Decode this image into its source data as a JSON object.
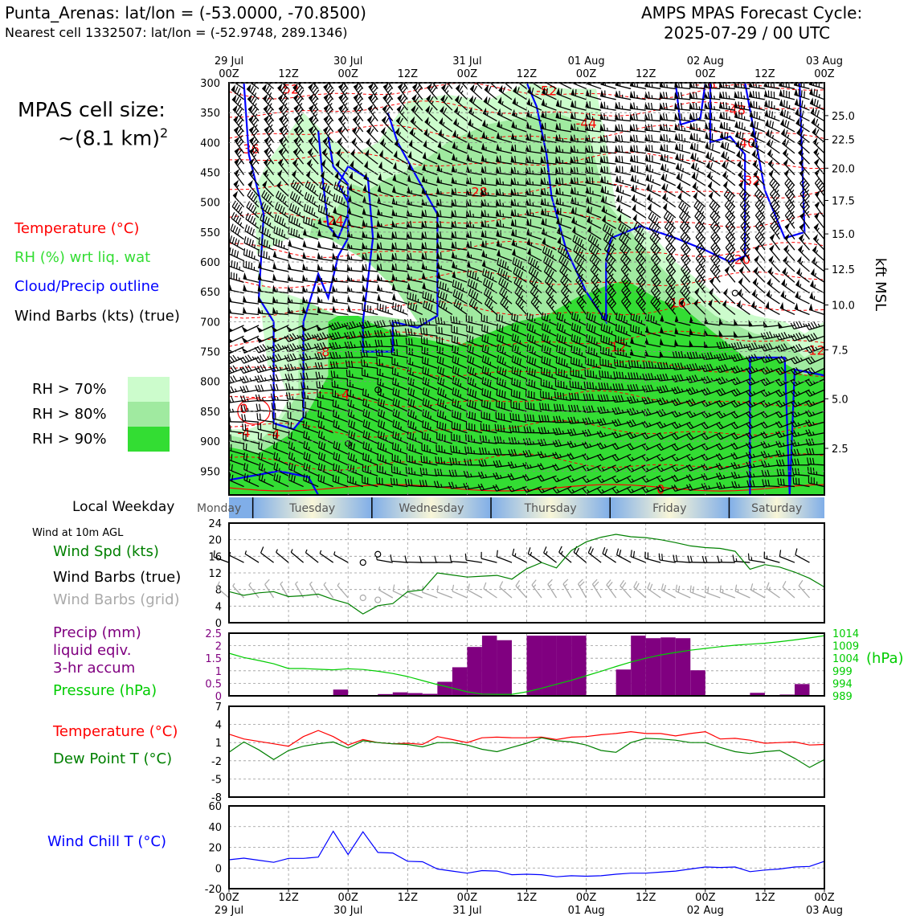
{
  "header": {
    "location": "Punta_Arenas: lat/lon = (-53.0000, -70.8500)",
    "nearest_cell": "Nearest cell 1332507: lat/lon = (-52.9748, 289.1346)",
    "forecast_title": "AMPS MPAS Forecast Cycle:",
    "forecast_cycle": "2025-07-29 / 00 UTC"
  },
  "cell_size": {
    "line1": "MPAS cell size:",
    "line2": "~(8.1 km)",
    "sup": "2"
  },
  "legend": {
    "temperature": "Temperature (°C)",
    "rh": "RH (%) wrt liq. wat",
    "cloud": "Cloud/Precip outline",
    "wind": "Wind Barbs (kts) (true)",
    "rh70": "RH > 70%",
    "rh80": "RH > 80%",
    "rh90": "RH > 90%"
  },
  "colors": {
    "rh70": "#ccfccc",
    "rh80": "#a0eaa0",
    "rh90": "#33dd33",
    "temperature": "#ff0000",
    "cloud": "#0000ff",
    "windspd": "#008000",
    "precip": "#800080",
    "pressure": "#00cc00",
    "windchill": "#0000ff",
    "barb_grid": "#aaaaaa"
  },
  "time_axis": {
    "top_labels": [
      {
        "day": "29 Jul",
        "hour": "00Z"
      },
      {
        "day": "",
        "hour": "12Z"
      },
      {
        "day": "30 Jul",
        "hour": "00Z"
      },
      {
        "day": "",
        "hour": "12Z"
      },
      {
        "day": "31 Jul",
        "hour": "00Z"
      },
      {
        "day": "",
        "hour": "12Z"
      },
      {
        "day": "01 Aug",
        "hour": "00Z"
      },
      {
        "day": "",
        "hour": "12Z"
      },
      {
        "day": "02 Aug",
        "hour": "00Z"
      },
      {
        "day": "",
        "hour": "12Z"
      },
      {
        "day": "03 Aug",
        "hour": "00Z"
      }
    ]
  },
  "weekdays": {
    "label": "Local Weekday",
    "names": [
      "Monday",
      "Tuesday",
      "Wednesday",
      "Thursday",
      "Friday",
      "Saturday"
    ]
  },
  "wind_panel": {
    "title": "Wind at 10m AGL",
    "spd_label": "Wind Spd (kts)",
    "barbs_true": "Wind Barbs (true)",
    "barbs_grid": "Wind Barbs (grid)"
  },
  "precip_panel": {
    "label1": "Precip (mm)",
    "label2": "liquid eqiv.",
    "label3": "3-hr accum",
    "pressure_label": "Pressure (hPa)",
    "hpa_unit": "(hPa)"
  },
  "temp_panel": {
    "temp_label": "Temperature (°C)",
    "dew_label": "Dew Point T (°C)"
  },
  "chill_panel": {
    "label": "Wind Chill T (°C)"
  },
  "chart_data": [
    {
      "type": "heatmap",
      "title": "",
      "ylabel": "",
      "y2label": "kft MSL",
      "y_ticks": [
        300,
        350,
        400,
        450,
        500,
        550,
        600,
        650,
        700,
        750,
        800,
        850,
        900,
        950
      ],
      "ylim": [
        990,
        300
      ],
      "kft_ticks": [
        {
          "p": 355,
          "label": "25.0"
        },
        {
          "p": 395,
          "label": "22.5"
        },
        {
          "p": 443,
          "label": "20.0"
        },
        {
          "p": 497,
          "label": "17.5"
        },
        {
          "p": 553,
          "label": "15.0"
        },
        {
          "p": 612,
          "label": "12.5"
        },
        {
          "p": 672,
          "label": "10.0"
        },
        {
          "p": 747,
          "label": "7.5"
        },
        {
          "p": 829,
          "label": "5.0"
        },
        {
          "p": 912,
          "label": "2.5"
        }
      ],
      "xlim_hours": [
        0,
        120
      ],
      "temperature_labels": [
        {
          "t": 12,
          "p": 310,
          "v": "-52"
        },
        {
          "t": 64,
          "p": 313,
          "v": "-52"
        },
        {
          "t": 96,
          "p": 302,
          "v": "-56"
        },
        {
          "t": 102,
          "p": 345,
          "v": "-48"
        },
        {
          "t": 72,
          "p": 367,
          "v": "-44"
        },
        {
          "t": 104,
          "p": 400,
          "v": "-40"
        },
        {
          "t": 4,
          "p": 410,
          "v": "-36"
        },
        {
          "t": 105,
          "p": 463,
          "v": "-32"
        },
        {
          "t": 50,
          "p": 482,
          "v": "-28"
        },
        {
          "t": 21,
          "p": 530,
          "v": "-24"
        },
        {
          "t": 103,
          "p": 595,
          "v": "-20"
        },
        {
          "t": 90,
          "p": 668,
          "v": "-16"
        },
        {
          "t": 78,
          "p": 742,
          "v": "-12"
        },
        {
          "t": 118,
          "p": 747,
          "v": "-12"
        },
        {
          "t": 19,
          "p": 750,
          "v": "-8"
        },
        {
          "t": 23,
          "p": 822,
          "v": "-4"
        },
        {
          "t": 3,
          "p": 885,
          "v": "-4"
        },
        {
          "t": 9,
          "p": 887,
          "v": "-4"
        },
        {
          "t": 3,
          "p": 845,
          "v": "0"
        },
        {
          "t": 87,
          "p": 980,
          "v": "0"
        }
      ]
    },
    {
      "type": "line",
      "title": "",
      "ylabel": "Wind Spd (kts)",
      "ylim": [
        0,
        24
      ],
      "y_ticks": [
        0,
        4,
        8,
        12,
        16,
        20,
        24
      ],
      "series": [
        {
          "name": "Wind Spd (kts)",
          "x": [
            0,
            3,
            6,
            9,
            12,
            15,
            18,
            21,
            24,
            27,
            30,
            33,
            36,
            39,
            42,
            45,
            48,
            51,
            54,
            57,
            60,
            63,
            66,
            69,
            72,
            75,
            78,
            81,
            84,
            87,
            90,
            93,
            96,
            99,
            102,
            105,
            108,
            111,
            114,
            117,
            120
          ],
          "values": [
            7.5,
            6.6,
            7.2,
            7.5,
            6.3,
            6.5,
            6.9,
            5.6,
            4.6,
            2.1,
            4.1,
            4.6,
            7.5,
            7.9,
            12.0,
            11.5,
            11.0,
            11.2,
            11.4,
            10.5,
            13.0,
            14.5,
            13.2,
            17.4,
            19.5,
            20.6,
            21.3,
            20.7,
            20.5,
            20.0,
            19.3,
            18.5,
            18.1,
            17.9,
            17.2,
            12.9,
            14.0,
            13.4,
            12.2,
            10.7,
            8.6
          ]
        }
      ]
    },
    {
      "type": "bar",
      "title": "",
      "ylabel": "Precip (mm)",
      "ylim": [
        0,
        2.5
      ],
      "y_ticks": [
        0,
        0.5,
        1.0,
        1.5,
        2.0,
        2.5
      ],
      "x": [
        21,
        24,
        27,
        30,
        33,
        36,
        39,
        42,
        45,
        48,
        51,
        54,
        57,
        60,
        63,
        66,
        69,
        72,
        75,
        78,
        81,
        84,
        87,
        90,
        93,
        96,
        99,
        102,
        105,
        108,
        111,
        114,
        117
      ],
      "values": [
        0,
        0.25,
        0,
        0,
        0.07,
        0.14,
        0.11,
        0.08,
        0.56,
        1.14,
        1.95,
        2.4,
        2.22,
        0,
        2.4,
        2.4,
        2.4,
        2.4,
        0,
        0,
        1.05,
        2.4,
        2.3,
        2.33,
        2.3,
        1.02,
        0,
        0,
        0,
        0.12,
        0.01,
        0.05,
        0.47
      ],
      "pressure": {
        "name": "Pressure (hPa)",
        "ylim": [
          989,
          1014
        ],
        "ticks": [
          989,
          994,
          999,
          1004,
          1009,
          1014
        ],
        "x": [
          0,
          3,
          6,
          9,
          12,
          15,
          18,
          21,
          24,
          27,
          30,
          33,
          36,
          39,
          42,
          45,
          48,
          51,
          54,
          57,
          60,
          63,
          66,
          69,
          72,
          75,
          78,
          81,
          84,
          87,
          90,
          93,
          96,
          99,
          102,
          105,
          108,
          111,
          114,
          117,
          120
        ],
        "values": [
          1006.0,
          1004.3,
          1003.1,
          1001.8,
          999.9,
          999.9,
          999.6,
          999.4,
          999.8,
          999.5,
          998.8,
          997.9,
          996.7,
          995.1,
          993.5,
          992.1,
          990.6,
          989.7,
          989.6,
          989.6,
          990.6,
          992.0,
          993.6,
          995.2,
          997.0,
          998.8,
          1000.7,
          1002.5,
          1004.0,
          1005.3,
          1006.3,
          1007.2,
          1007.9,
          1008.6,
          1009.2,
          1009.6,
          1010.0,
          1010.6,
          1011.3,
          1012.1,
          1013.0
        ]
      }
    },
    {
      "type": "line",
      "title": "",
      "ylabel": "Temperature (°C)",
      "ylim": [
        -8,
        7
      ],
      "y_ticks": [
        -8,
        -5,
        -2,
        1,
        4,
        7
      ],
      "x": [
        0,
        3,
        6,
        9,
        12,
        15,
        18,
        21,
        24,
        27,
        30,
        33,
        36,
        39,
        42,
        45,
        48,
        51,
        54,
        57,
        60,
        63,
        66,
        69,
        72,
        75,
        78,
        81,
        84,
        87,
        90,
        93,
        96,
        99,
        102,
        105,
        108,
        111,
        114,
        117,
        120
      ],
      "series": [
        {
          "name": "Temperature (°C)",
          "values": [
            2.4,
            1.6,
            1.2,
            0.8,
            0.4,
            2.0,
            3.0,
            2.0,
            0.6,
            1.5,
            1.0,
            0.8,
            0.9,
            0.7,
            2.0,
            1.5,
            1.0,
            1.8,
            1.9,
            1.8,
            1.8,
            1.9,
            1.5,
            1.9,
            2.0,
            2.3,
            2.5,
            2.8,
            2.5,
            2.5,
            2.1,
            2.5,
            2.8,
            1.6,
            1.7,
            1.4,
            0.9,
            1.0,
            1.1,
            0.6,
            0.7
          ]
        },
        {
          "name": "Dew Point T (°C)",
          "values": [
            -0.6,
            1.1,
            -0.2,
            -1.8,
            -0.3,
            0.4,
            0.8,
            1.1,
            0.1,
            1.3,
            1.0,
            0.8,
            0.7,
            0.3,
            1.0,
            1.0,
            0.6,
            -0.1,
            -0.5,
            0.2,
            0.9,
            1.8,
            1.3,
            1.1,
            0.6,
            -0.3,
            -0.6,
            1.0,
            1.7,
            1.6,
            1.4,
            1.0,
            1.0,
            0.2,
            -0.5,
            -0.8,
            -0.5,
            -0.3,
            -1.6,
            -3.1,
            -1.8
          ]
        }
      ]
    },
    {
      "type": "line",
      "title": "",
      "ylabel": "Wind Chill T (°C)",
      "ylim": [
        -20,
        60
      ],
      "y_ticks": [
        -20,
        0,
        20,
        40,
        60
      ],
      "series": [
        {
          "name": "Wind Chill T (°C)",
          "x": [
            0,
            3,
            6,
            9,
            12,
            15,
            18,
            21,
            24,
            27,
            30,
            33,
            36,
            39,
            42,
            45,
            48,
            51,
            54,
            57,
            60,
            63,
            66,
            69,
            72,
            75,
            78,
            81,
            84,
            87,
            90,
            93,
            96,
            99,
            102,
            105,
            108,
            111,
            114,
            117,
            120
          ],
          "values": [
            8,
            9.5,
            7.5,
            5.5,
            9.3,
            9.3,
            10.5,
            35.5,
            13,
            35,
            15,
            14.5,
            6.5,
            6,
            -1,
            -3,
            -5,
            -2.5,
            -3,
            -6.5,
            -6,
            -6.5,
            -8.5,
            -7.5,
            -8,
            -7.5,
            -6,
            -5,
            -5,
            -4,
            -3,
            -1,
            1,
            0.5,
            1,
            -3.5,
            -2,
            -1,
            1,
            1.5,
            6.5
          ]
        }
      ]
    }
  ]
}
